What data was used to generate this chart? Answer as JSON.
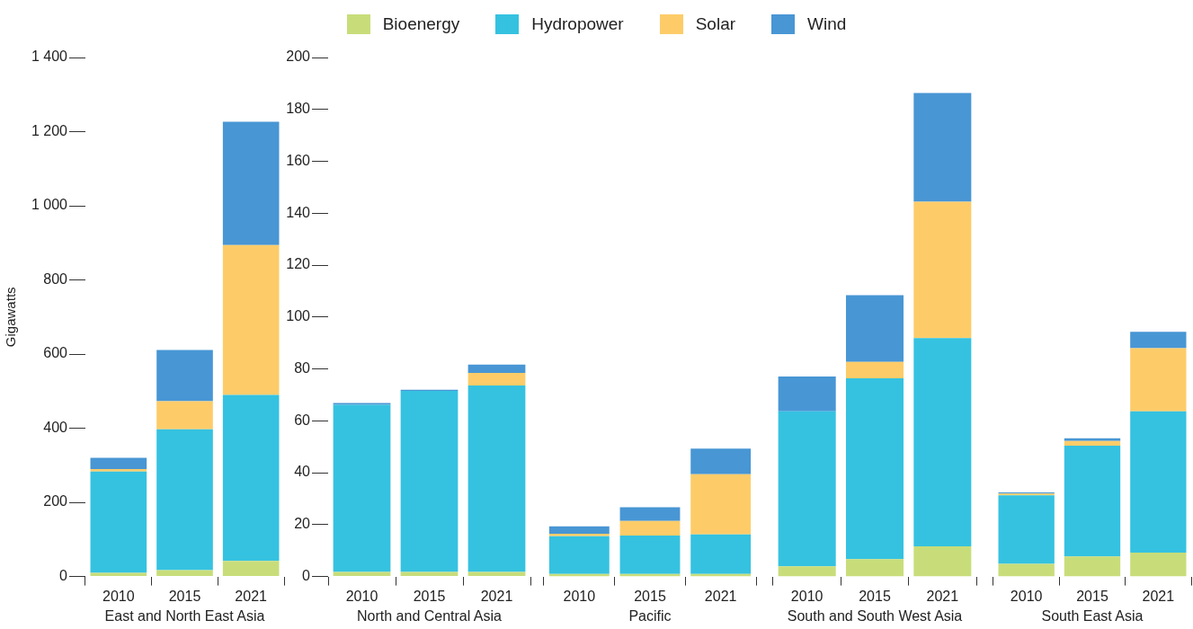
{
  "chart_data": [
    {
      "type": "bar",
      "stacked": true,
      "legend": "top",
      "categories": [
        "2010",
        "2015",
        "2021"
      ],
      "xlabel": "East and North East Asia",
      "ylabel": "Gigawatts",
      "ylim": [
        0,
        1400
      ],
      "yticks": [
        0,
        200,
        400,
        600,
        800,
        {
          "value": 1000,
          "label": "1 000"
        },
        {
          "value": 1200,
          "label": "1 200"
        },
        {
          "value": 1400,
          "label": "1 400"
        }
      ],
      "series": [
        {
          "name": "Bioenergy",
          "color": "#c8dd7a",
          "values": [
            10,
            17,
            42
          ]
        },
        {
          "name": "Hydropower",
          "color": "#35c2e0",
          "values": [
            273,
            380,
            448
          ]
        },
        {
          "name": "Solar",
          "color": "#fdcc69",
          "values": [
            7,
            76,
            404
          ]
        },
        {
          "name": "Wind",
          "color": "#4896d4",
          "values": [
            30,
            138,
            333
          ]
        }
      ]
    },
    {
      "type": "bar",
      "stacked": true,
      "categories": [
        "2010",
        "2015",
        "2021"
      ],
      "xlabel": "North and Central Asia",
      "ylim": [
        0,
        200
      ],
      "yticks": [
        0,
        20,
        40,
        60,
        80,
        100,
        120,
        140,
        160,
        180,
        200
      ],
      "series": [
        {
          "color": "#c8dd7a",
          "values": [
            1.8,
            1.8,
            1.8
          ]
        },
        {
          "color": "#35c2e0",
          "values": [
            64.4,
            69.7,
            71.8
          ]
        },
        {
          "color": "#fdcc69",
          "values": [
            null,
            null,
            4.9
          ]
        },
        {
          "color": "#4896d4",
          "values": [
            0.7,
            0.5,
            3.2
          ]
        }
      ]
    },
    {
      "type": "bar",
      "stacked": true,
      "tick_labels": "x",
      "categories": [
        "2010",
        "2015",
        "2021"
      ],
      "xlabel": "Pacific",
      "ylim": [
        0,
        200
      ],
      "series": [
        {
          "color": "#c8dd7a",
          "values": [
            1.0,
            1.0,
            1.0
          ]
        },
        {
          "color": "#35c2e0",
          "values": [
            14.5,
            14.8,
            15.2
          ]
        },
        {
          "color": "#fdcc69",
          "values": [
            1.0,
            5.6,
            23.2
          ]
        },
        {
          "color": "#4896d4",
          "values": [
            2.8,
            5.3,
            9.9
          ]
        }
      ]
    },
    {
      "type": "bar",
      "stacked": true,
      "tick_labels": "x",
      "categories": [
        "2010",
        "2015",
        "2021"
      ],
      "xlabel": "South and South West Asia",
      "ylim": [
        0,
        200
      ],
      "series": [
        {
          "color": "#c8dd7a",
          "values": [
            3.9,
            6.7,
            11.6
          ]
        },
        {
          "color": "#35c2e0",
          "values": [
            59.8,
            69.7,
            80.3
          ]
        },
        {
          "color": "#fdcc69",
          "values": [
            null,
            6.3,
            52.5
          ]
        },
        {
          "color": "#4896d4",
          "values": [
            13.4,
            25.7,
            41.9
          ]
        }
      ]
    },
    {
      "type": "bar",
      "stacked": true,
      "tick_labels": "x",
      "categories": [
        "2010",
        "2015",
        "2021"
      ],
      "xlabel": "South East Asia",
      "ylim": [
        0,
        200
      ],
      "series": [
        {
          "color": "#c8dd7a",
          "values": [
            4.9,
            7.7,
            9.2
          ]
        },
        {
          "color": "#35c2e0",
          "values": [
            26.4,
            42.7,
            54.5
          ]
        },
        {
          "color": "#fdcc69",
          "values": [
            0.7,
            1.8,
            24.3
          ]
        },
        {
          "color": "#4896d4",
          "values": [
            0.4,
            1.1,
            6.3
          ]
        }
      ]
    }
  ]
}
